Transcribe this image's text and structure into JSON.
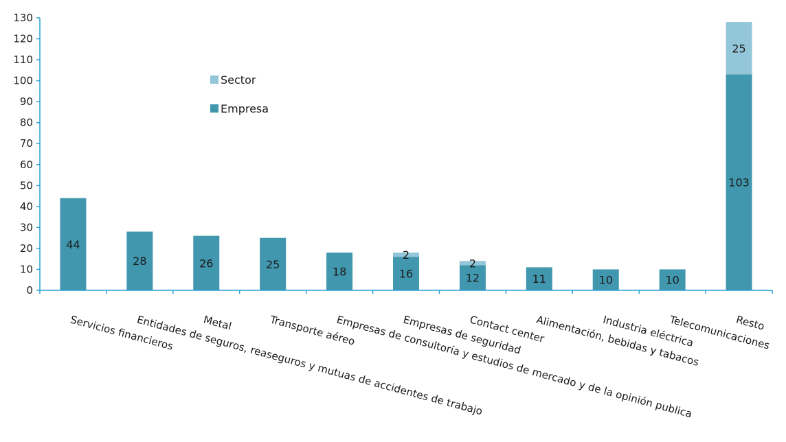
{
  "chart_data": {
    "type": "bar",
    "stacked": true,
    "categories": [
      "Servicios financieros",
      "Entidades de seguros, reaseguros y mutuas de accidentes de trabajo",
      "Metal",
      "Transporte aéreo",
      "Empresas de consultoría y estudios de mercado y de la opinión publica",
      "Empresas de seguridad",
      "Contact center",
      "Alimentación, bebidas y tabacos",
      "Industria eléctrica",
      "Telecomunicaciones",
      "Resto"
    ],
    "series": [
      {
        "name": "Empresa",
        "color": "#4197ae",
        "values": [
          44,
          28,
          26,
          25,
          18,
          16,
          12,
          11,
          10,
          10,
          103
        ]
      },
      {
        "name": "Sector",
        "color": "#93c6d8",
        "values": [
          0,
          0,
          0,
          0,
          0,
          2,
          2,
          0,
          0,
          0,
          25
        ]
      }
    ],
    "ylim": [
      0,
      130
    ],
    "yticks": [
      "0",
      "10",
      "20",
      "30",
      "40",
      "50",
      "60",
      "70",
      "80",
      "90",
      "100",
      "110",
      "120",
      "130"
    ],
    "legend": {
      "placement": "top-left-inside",
      "entries": [
        "Sector",
        "Empresa"
      ]
    },
    "grid": false,
    "axis_color": "#2a9fd6"
  }
}
